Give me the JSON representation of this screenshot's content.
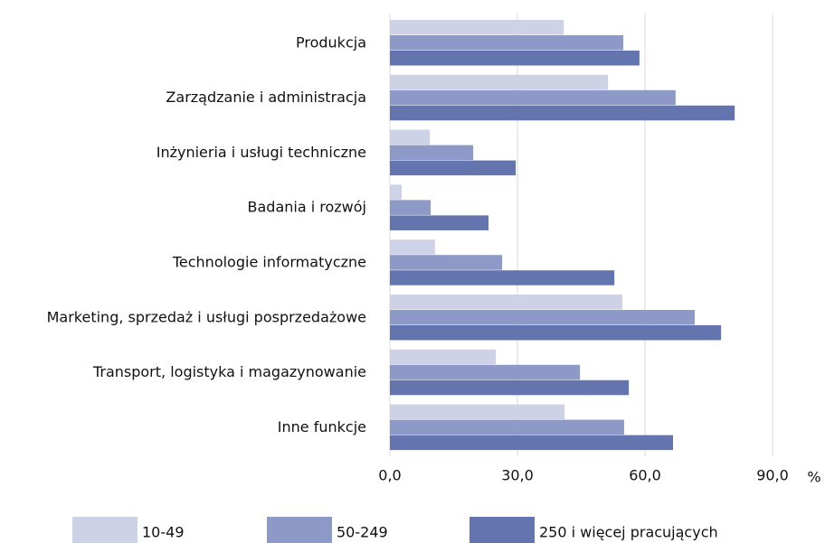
{
  "chart_data": {
    "type": "barh",
    "categories": [
      "Produkcja",
      "Zarządzanie i administracja",
      "Inżynieria i usługi techniczne",
      "Badania i rozwój",
      "Technologie informatyczne",
      "Marketing, sprzedaż i usługi posprzedażowe",
      "Transport, logistyka i magazynowanie",
      "Inne funkcje"
    ],
    "series": [
      {
        "name": "10-49",
        "color": "#cdd2e6",
        "values": [
          40.9,
          51.3,
          9.4,
          2.8,
          10.6,
          54.7,
          24.9,
          41.1
        ]
      },
      {
        "name": "50-249",
        "color": "#8d9ac8",
        "values": [
          54.9,
          67.2,
          19.6,
          9.6,
          26.4,
          71.7,
          44.7,
          55.1
        ]
      },
      {
        "name": "250 i więcej pracujących",
        "color": "#6474ae",
        "values": [
          58.7,
          81.1,
          29.6,
          23.2,
          52.8,
          77.9,
          56.2,
          66.6
        ]
      }
    ],
    "xlabel": "%",
    "xlim": [
      0,
      90
    ],
    "xticks": [
      {
        "value": 0,
        "label": "0,0"
      },
      {
        "value": 30,
        "label": "30,0"
      },
      {
        "value": 60,
        "label": "60,0"
      },
      {
        "value": 90,
        "label": "90,0"
      }
    ],
    "grid": true,
    "legend": "bottom"
  }
}
